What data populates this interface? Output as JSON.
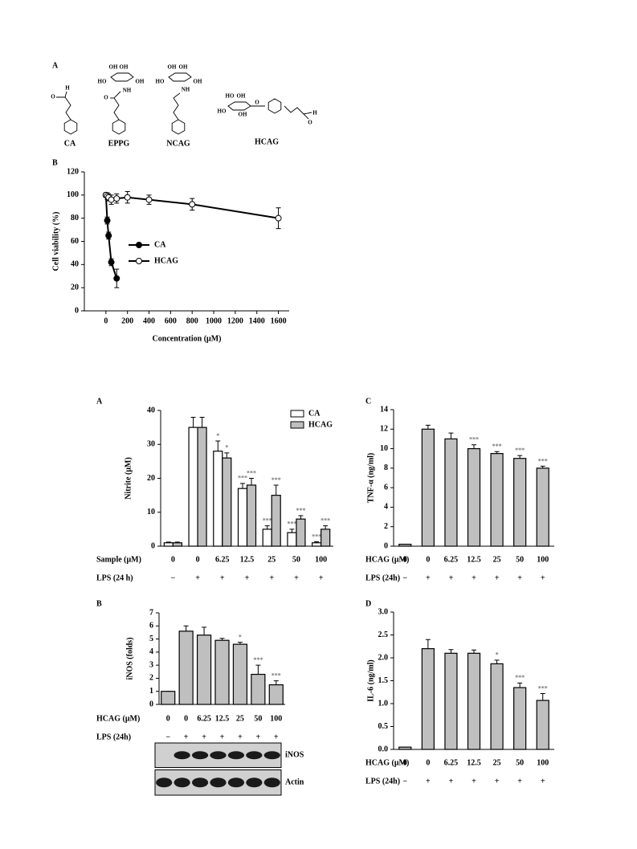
{
  "structures": {
    "panel": "A",
    "compounds": [
      {
        "name": "CA",
        "atoms": [
          "O",
          "H"
        ]
      },
      {
        "name": "EPPG",
        "atoms": [
          "OH",
          "OH",
          "HO",
          "OH",
          "NH",
          "O"
        ]
      },
      {
        "name": "NCAG",
        "atoms": [
          "OH",
          "OH",
          "HO",
          "OH",
          "NH"
        ]
      },
      {
        "name": "HCAG",
        "atoms": [
          "HO",
          "OH",
          "HO",
          "OH",
          "O",
          "O",
          "H"
        ]
      }
    ]
  },
  "chart_data": [
    {
      "type": "line",
      "panel": "B",
      "xlabel": "Concentration (μM)",
      "ylabel": "Cell viability (%)",
      "xlim": [
        -200,
        1700
      ],
      "xticks": [
        0,
        200,
        400,
        600,
        800,
        1000,
        1200,
        1400,
        1600
      ],
      "ylim": [
        0,
        120
      ],
      "yticks": [
        0,
        20,
        40,
        60,
        80,
        100,
        120
      ],
      "legend": "center-left",
      "series": [
        {
          "name": "CA",
          "color": "#000000",
          "marker": "filled",
          "x": [
            0,
            12.5,
            25,
            50,
            100
          ],
          "values": [
            100,
            78,
            65,
            42,
            28
          ],
          "errors": [
            0,
            3,
            3,
            3,
            8
          ]
        },
        {
          "name": "HCAG",
          "color": "#000000",
          "marker": "open",
          "x": [
            0,
            12.5,
            25,
            50,
            100,
            200,
            400,
            800,
            1600
          ],
          "values": [
            100,
            99,
            98,
            96,
            97,
            98,
            96,
            92,
            80
          ],
          "errors": [
            2,
            3,
            3,
            4,
            4,
            5,
            4,
            5,
            9
          ]
        }
      ]
    },
    {
      "type": "bar",
      "panel": "A",
      "ylabel": "Nitrite (μM)",
      "ylim": [
        0,
        40
      ],
      "yticks": [
        0,
        10,
        20,
        30,
        40
      ],
      "legend": "upper-right",
      "category_label": "Sample (μM)",
      "categories": [
        "0",
        "0",
        "6.25",
        "12.5",
        "25",
        "50",
        "100"
      ],
      "treatment_label": "LPS (24 h)",
      "treatment": [
        "−",
        "+",
        "+",
        "+",
        "+",
        "+",
        "+"
      ],
      "series": [
        {
          "name": "CA",
          "color": "#ffffff",
          "values": [
            1,
            35,
            28,
            17,
            5,
            4,
            1
          ],
          "errors": [
            0.2,
            3,
            3,
            1.5,
            1,
            1,
            0.3
          ],
          "annotations": [
            null,
            null,
            "*",
            "***",
            "***",
            "***",
            "***"
          ]
        },
        {
          "name": "HCAG",
          "color": "#bfbfbf",
          "values": [
            1,
            35,
            26,
            18,
            15,
            8,
            5
          ],
          "errors": [
            0.2,
            3,
            1.5,
            2,
            3,
            1,
            1
          ],
          "annotations": [
            null,
            null,
            "*",
            "***",
            "***",
            "***",
            "***"
          ]
        }
      ]
    },
    {
      "type": "bar",
      "panel": "B",
      "ylabel": "iNOS (folds)",
      "ylim": [
        0,
        7
      ],
      "yticks": [
        0,
        1,
        2,
        3,
        4,
        5,
        6,
        7
      ],
      "category_label": "HCAG (μM)",
      "categories": [
        "0",
        "0",
        "6.25",
        "12.5",
        "25",
        "50",
        "100"
      ],
      "treatment_label": "LPS (24h)",
      "treatment": [
        "−",
        "+",
        "+",
        "+",
        "+",
        "+",
        "+"
      ],
      "color": "#bfbfbf",
      "values": [
        1,
        5.6,
        5.3,
        4.9,
        4.6,
        2.3,
        1.5
      ],
      "errors": [
        0,
        0.4,
        0.6,
        0.15,
        0.15,
        0.7,
        0.3
      ],
      "annotations": [
        null,
        null,
        null,
        null,
        "*",
        "***",
        "***"
      ],
      "blot_labels": [
        "iNOS",
        "Actin"
      ]
    },
    {
      "type": "bar",
      "panel": "C",
      "ylabel": "TNF-α (ng/ml)",
      "ylim": [
        0,
        14
      ],
      "yticks": [
        0,
        2,
        4,
        6,
        8,
        10,
        12,
        14
      ],
      "category_label": "HCAG (μM)",
      "categories": [
        "0",
        "0",
        "6.25",
        "12.5",
        "25",
        "50",
        "100"
      ],
      "treatment_label": "LPS (24h)",
      "treatment": [
        "−",
        "+",
        "+",
        "+",
        "+",
        "+",
        "+"
      ],
      "color": "#bfbfbf",
      "values": [
        0.2,
        12,
        11,
        10,
        9.5,
        9,
        8
      ],
      "errors": [
        0,
        0.4,
        0.6,
        0.4,
        0.2,
        0.3,
        0.2
      ],
      "annotations": [
        null,
        null,
        null,
        "***",
        "***",
        "***",
        "***"
      ]
    },
    {
      "type": "bar",
      "panel": "D",
      "ylabel": "IL-6 (ng/ml)",
      "ylim": [
        0,
        3
      ],
      "yticks": [
        {
          "value": 0,
          "label": "0.0"
        },
        0.5,
        {
          "value": 1,
          "label": "1.0"
        },
        1.5,
        {
          "value": 2,
          "label": "2.0"
        },
        2.5,
        {
          "value": 3,
          "label": "3.0"
        }
      ],
      "category_label": "HCAG (μM)",
      "categories": [
        "0",
        "0",
        "6.25",
        "12.5",
        "25",
        "50",
        "100"
      ],
      "treatment_label": "LPS (24h)",
      "treatment": [
        "−",
        "+",
        "+",
        "+",
        "+",
        "+",
        "+"
      ],
      "color": "#bfbfbf",
      "values": [
        0.05,
        2.2,
        2.1,
        2.1,
        1.87,
        1.35,
        1.07
      ],
      "errors": [
        0,
        0.2,
        0.08,
        0.07,
        0.08,
        0.1,
        0.15
      ],
      "annotations": [
        null,
        null,
        null,
        null,
        "*",
        "***",
        "***"
      ]
    }
  ]
}
